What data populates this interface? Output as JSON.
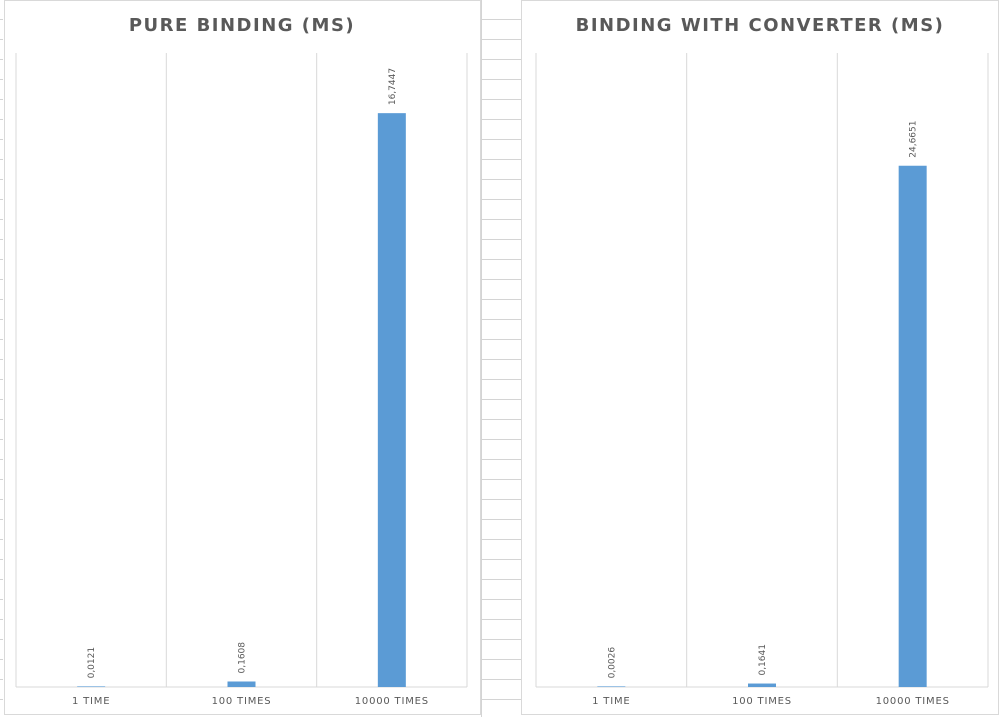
{
  "chart_data": [
    {
      "type": "bar",
      "title": "PURE BINDING (MS)",
      "xlabel": "",
      "ylabel": "",
      "categories": [
        "1 TIME",
        "100 TIMES",
        "10000 TIMES"
      ],
      "values": [
        0.0121,
        0.1608,
        16.7447
      ],
      "value_labels": [
        "0,0121",
        "0,1608",
        "16,7447"
      ],
      "ylim": [
        0,
        18.5
      ],
      "grid": "vertical category separators",
      "legend": "none",
      "bar_color": "#5b9bd5"
    },
    {
      "type": "bar",
      "title": "BINDING WITH CONVERTER (MS)",
      "xlabel": "",
      "ylabel": "",
      "categories": [
        "1 TIME",
        "100 TIMES",
        "10000 TIMES"
      ],
      "values": [
        0.0026,
        0.1641,
        24.6651
      ],
      "value_labels": [
        "0,0026",
        "0,1641",
        "24,6651"
      ],
      "ylim": [
        0,
        30
      ],
      "grid": "vertical category separators",
      "legend": "none",
      "bar_color": "#5b9bd5"
    }
  ],
  "colors": {
    "bar": "#5b9bd5",
    "text": "#595959",
    "gridline": "#d9d9d9",
    "sheet_grid": "#d4d4d4"
  }
}
